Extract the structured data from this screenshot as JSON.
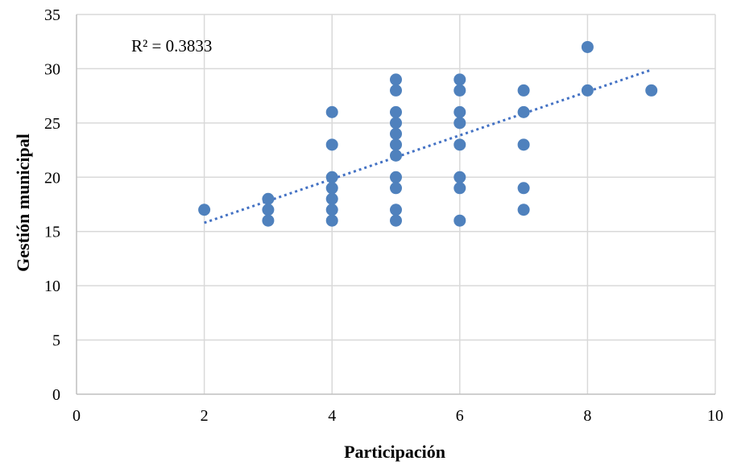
{
  "chart_data": {
    "type": "scatter",
    "xlabel": "Participación",
    "ylabel": "Gestión municipal",
    "xlim": [
      0,
      10
    ],
    "ylim": [
      0,
      35
    ],
    "x_ticks": [
      0,
      2,
      4,
      6,
      8,
      10
    ],
    "y_ticks": [
      0,
      5,
      10,
      15,
      20,
      25,
      30,
      35
    ],
    "grid": true,
    "annotation": "R² = 0.3833",
    "marker_color": "#4f81bd",
    "trendline": {
      "type": "linear",
      "style": "dotted",
      "color": "#4472c4",
      "x": [
        2,
        9
      ],
      "y": [
        15.8,
        29.9
      ]
    },
    "series": [
      {
        "points": [
          [
            2,
            17
          ],
          [
            3,
            18
          ],
          [
            3,
            17
          ],
          [
            3,
            16
          ],
          [
            4,
            26
          ],
          [
            4,
            23
          ],
          [
            4,
            20
          ],
          [
            4,
            19
          ],
          [
            4,
            18
          ],
          [
            4,
            17
          ],
          [
            4,
            16
          ],
          [
            5,
            29
          ],
          [
            5,
            28
          ],
          [
            5,
            26
          ],
          [
            5,
            25
          ],
          [
            5,
            24
          ],
          [
            5,
            23
          ],
          [
            5,
            22
          ],
          [
            5,
            20
          ],
          [
            5,
            19
          ],
          [
            5,
            17
          ],
          [
            5,
            16
          ],
          [
            6,
            29
          ],
          [
            6,
            28
          ],
          [
            6,
            26
          ],
          [
            6,
            25
          ],
          [
            6,
            23
          ],
          [
            6,
            20
          ],
          [
            6,
            19
          ],
          [
            6,
            16
          ],
          [
            7,
            28
          ],
          [
            7,
            26
          ],
          [
            7,
            23
          ],
          [
            7,
            19
          ],
          [
            7,
            17
          ],
          [
            8,
            32
          ],
          [
            8,
            28
          ],
          [
            9,
            28
          ]
        ]
      }
    ]
  }
}
